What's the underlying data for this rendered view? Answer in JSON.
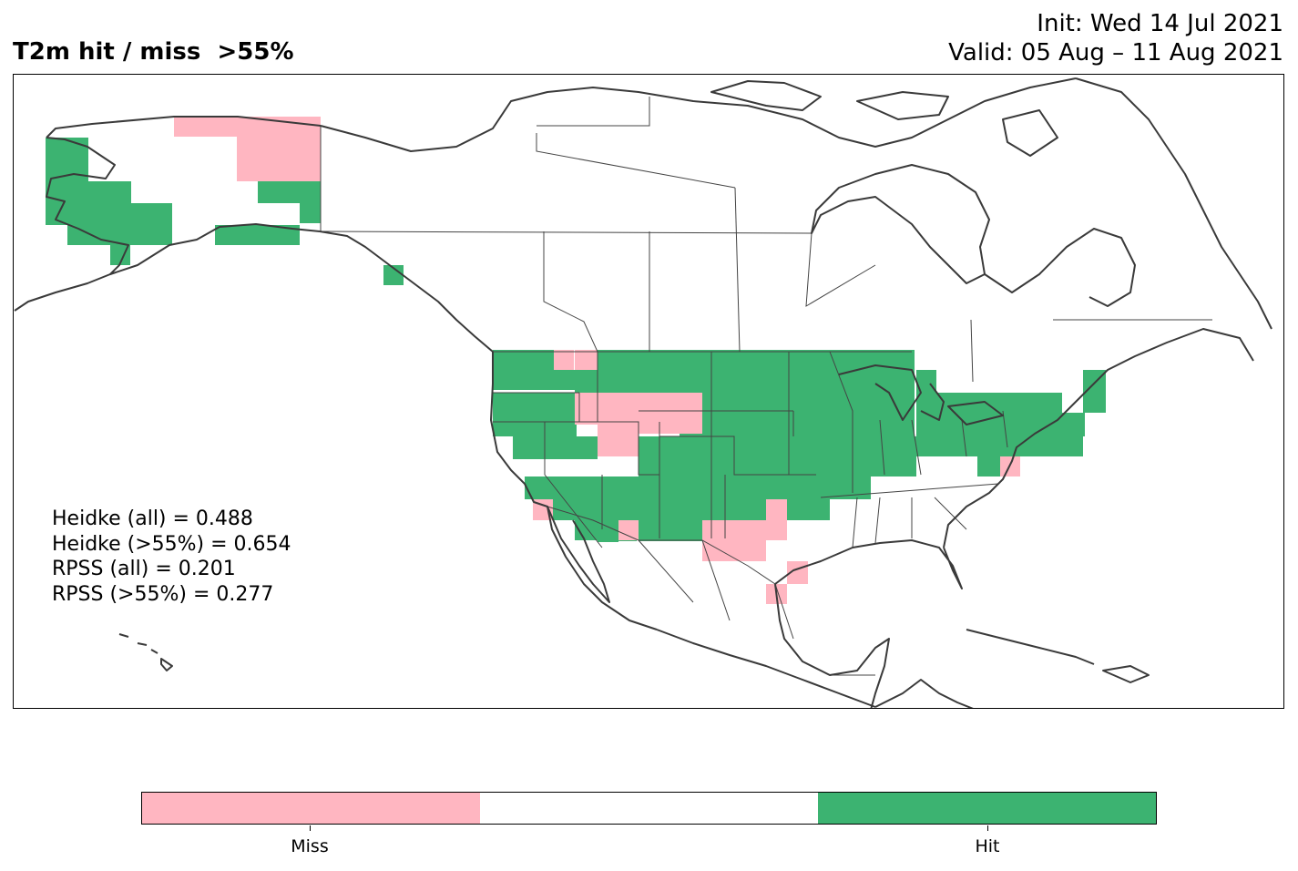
{
  "title": {
    "left": "T2m hit / miss  >55%",
    "init": "Init: Wed 14 Jul 2021",
    "valid": "Valid: 05 Aug – 11 Aug 2021"
  },
  "stats": {
    "heidke_all": "Heidke (all) = 0.488",
    "heidke_55": "Heidke (>55%) = 0.654",
    "rpss_all": "RPSS (all) = 0.201",
    "rpss_55": "RPSS (>55%) = 0.277"
  },
  "colors": {
    "hit": "#3cb371",
    "miss": "#ffb6c1",
    "neutral": "#ffffff",
    "coast": "#3a3a3a"
  },
  "legend": {
    "miss_label": "Miss",
    "hit_label": "Hit"
  },
  "map": {
    "region": "North America",
    "cell_categories": [
      "hit",
      "miss"
    ]
  }
}
